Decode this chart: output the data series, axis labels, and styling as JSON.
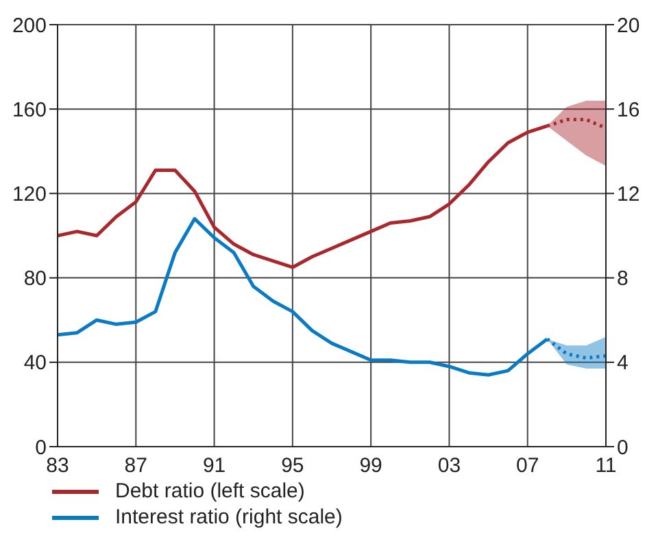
{
  "chart_data": {
    "type": "line",
    "x": [
      1983,
      1984,
      1985,
      1986,
      1987,
      1988,
      1989,
      1990,
      1991,
      1992,
      1993,
      1994,
      1995,
      1996,
      1997,
      1998,
      1999,
      2000,
      2001,
      2002,
      2003,
      2004,
      2005,
      2006,
      2007,
      2008
    ],
    "series": [
      {
        "name": "Debt ratio (left scale)",
        "color": "#a8282e",
        "values": [
          100,
          102,
          100,
          109,
          116,
          131,
          131,
          121,
          104,
          96,
          91,
          88,
          85,
          90,
          94,
          98,
          102,
          106,
          107,
          109,
          115,
          124,
          135,
          144,
          149,
          152
        ]
      },
      {
        "name": "Interest ratio (right scale)",
        "color": "#0a7ac4",
        "axis": "y2",
        "values": [
          5.3,
          5.4,
          6.0,
          5.8,
          5.9,
          6.4,
          9.2,
          10.8,
          9.9,
          9.2,
          7.6,
          6.9,
          6.4,
          5.5,
          4.9,
          4.5,
          4.1,
          4.1,
          4.0,
          4.0,
          3.8,
          3.5,
          3.4,
          3.6,
          4.4,
          5.1
        ]
      },
      {
        "color": "#a8282e",
        "line_style": "dotted",
        "x": [
          2008,
          2009,
          2010,
          2011
        ],
        "values": [
          152,
          155,
          155,
          151
        ],
        "lower": [
          152,
          145,
          138,
          133
        ],
        "upper": [
          152,
          161,
          164,
          164
        ]
      },
      {
        "color": "#0a7ac4",
        "line_style": "dotted",
        "axis": "y2",
        "x": [
          2008,
          2009,
          2010,
          2011
        ],
        "values": [
          5.1,
          4.4,
          4.2,
          4.3
        ],
        "lower": [
          5.1,
          3.9,
          3.7,
          3.7
        ],
        "upper": [
          5.1,
          4.8,
          4.8,
          5.2
        ]
      }
    ],
    "xlim": [
      1983,
      2011
    ],
    "xticks": [
      {
        "value": 1983,
        "label": "83"
      },
      {
        "value": 1987,
        "label": "87"
      },
      {
        "value": 1991,
        "label": "91"
      },
      {
        "value": 1995,
        "label": "95"
      },
      {
        "value": 1999,
        "label": "99"
      },
      {
        "value": 2003,
        "label": "03"
      },
      {
        "value": 2007,
        "label": "07"
      },
      {
        "value": 2011,
        "label": "11"
      }
    ],
    "ylim": [
      0,
      200
    ],
    "yticks": [
      0,
      40,
      80,
      120,
      160,
      200
    ],
    "y2lim": [
      0,
      20
    ],
    "y2ticks": [
      0,
      4,
      8,
      12,
      16,
      20
    ],
    "grid": true,
    "legend": "bottom",
    "marker": "none",
    "line_style": "solid"
  }
}
